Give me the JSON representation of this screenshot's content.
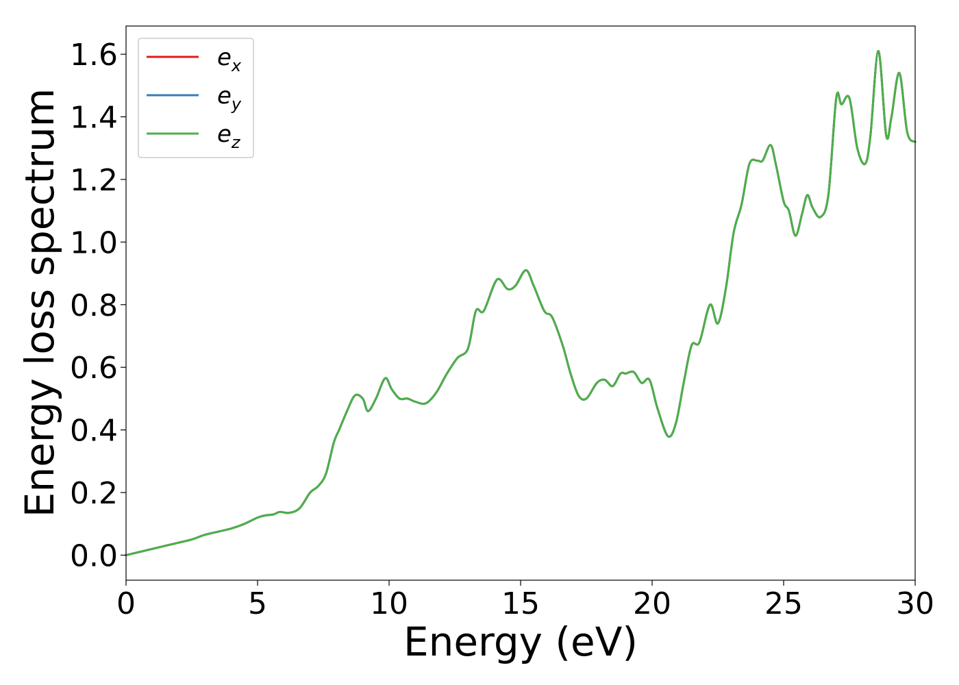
{
  "chart_data": {
    "type": "line",
    "xlabel": "Energy (eV)",
    "ylabel": "Energy loss spectrum",
    "xlim": [
      0,
      30
    ],
    "ylim": [
      -0.08,
      1.69
    ],
    "xticks": [
      0,
      5,
      10,
      15,
      20,
      25,
      30
    ],
    "xtick_labels": [
      "0",
      "5",
      "10",
      "15",
      "20",
      "25",
      "30"
    ],
    "yticks": [
      0.0,
      0.2,
      0.4,
      0.6,
      0.8,
      1.0,
      1.2,
      1.4,
      1.6
    ],
    "ytick_labels": [
      "0.0",
      "0.2",
      "0.4",
      "0.6",
      "0.8",
      "1.0",
      "1.2",
      "1.4",
      "1.6"
    ],
    "grid": false,
    "legend_position": "top-left",
    "x": [
      0,
      0.5,
      1.0,
      1.5,
      2.0,
      2.5,
      3.0,
      3.5,
      4.0,
      4.5,
      5.0,
      5.3,
      5.6,
      5.85,
      6.2,
      6.6,
      7.0,
      7.3,
      7.6,
      7.9,
      8.1,
      8.4,
      8.7,
      9.0,
      9.2,
      9.5,
      9.85,
      10.1,
      10.4,
      10.7,
      11.0,
      11.4,
      11.8,
      12.2,
      12.6,
      13.0,
      13.3,
      13.6,
      14.1,
      14.5,
      14.8,
      15.2,
      15.5,
      15.9,
      16.2,
      16.6,
      16.9,
      17.2,
      17.5,
      17.9,
      18.2,
      18.5,
      18.8,
      19.0,
      19.3,
      19.6,
      19.9,
      20.2,
      20.6,
      20.9,
      21.2,
      21.5,
      21.8,
      22.2,
      22.5,
      22.8,
      23.1,
      23.4,
      23.7,
      24.0,
      24.2,
      24.5,
      24.7,
      25.0,
      25.2,
      25.45,
      25.7,
      25.9,
      26.1,
      26.4,
      26.7,
      27.0,
      27.2,
      27.5,
      27.8,
      28.1,
      28.3,
      28.6,
      28.9,
      29.1,
      29.4,
      29.7,
      30.0
    ],
    "series": [
      {
        "name": "e_x",
        "color": "#e41a1c",
        "values": [
          0.0,
          0.01,
          0.02,
          0.03,
          0.04,
          0.05,
          0.065,
          0.075,
          0.085,
          0.1,
          0.12,
          0.127,
          0.13,
          0.138,
          0.135,
          0.15,
          0.2,
          0.22,
          0.26,
          0.36,
          0.4,
          0.46,
          0.51,
          0.5,
          0.46,
          0.5,
          0.565,
          0.53,
          0.5,
          0.5,
          0.49,
          0.485,
          0.52,
          0.58,
          0.63,
          0.66,
          0.78,
          0.78,
          0.88,
          0.85,
          0.86,
          0.91,
          0.86,
          0.78,
          0.76,
          0.67,
          0.58,
          0.51,
          0.5,
          0.55,
          0.56,
          0.54,
          0.58,
          0.58,
          0.585,
          0.55,
          0.56,
          0.47,
          0.38,
          0.42,
          0.55,
          0.67,
          0.68,
          0.8,
          0.74,
          0.85,
          1.03,
          1.12,
          1.25,
          1.26,
          1.26,
          1.31,
          1.25,
          1.13,
          1.1,
          1.02,
          1.09,
          1.15,
          1.11,
          1.08,
          1.15,
          1.46,
          1.44,
          1.46,
          1.3,
          1.25,
          1.34,
          1.61,
          1.34,
          1.4,
          1.54,
          1.35,
          1.32
        ]
      },
      {
        "name": "e_y",
        "color": "#377eb8",
        "values": [
          0.0,
          0.01,
          0.02,
          0.03,
          0.04,
          0.05,
          0.065,
          0.075,
          0.085,
          0.1,
          0.12,
          0.127,
          0.13,
          0.138,
          0.135,
          0.15,
          0.2,
          0.22,
          0.26,
          0.36,
          0.4,
          0.46,
          0.51,
          0.5,
          0.46,
          0.5,
          0.565,
          0.53,
          0.5,
          0.5,
          0.49,
          0.485,
          0.52,
          0.58,
          0.63,
          0.66,
          0.78,
          0.78,
          0.88,
          0.85,
          0.86,
          0.91,
          0.86,
          0.78,
          0.76,
          0.67,
          0.58,
          0.51,
          0.5,
          0.55,
          0.56,
          0.54,
          0.58,
          0.58,
          0.585,
          0.55,
          0.56,
          0.47,
          0.38,
          0.42,
          0.55,
          0.67,
          0.68,
          0.8,
          0.74,
          0.85,
          1.03,
          1.12,
          1.25,
          1.26,
          1.26,
          1.31,
          1.25,
          1.13,
          1.1,
          1.02,
          1.09,
          1.15,
          1.11,
          1.08,
          1.15,
          1.46,
          1.44,
          1.46,
          1.3,
          1.25,
          1.34,
          1.61,
          1.34,
          1.4,
          1.54,
          1.35,
          1.32
        ]
      },
      {
        "name": "e_z",
        "color": "#4daf4a",
        "values": [
          0.0,
          0.01,
          0.02,
          0.03,
          0.04,
          0.05,
          0.065,
          0.075,
          0.085,
          0.1,
          0.12,
          0.127,
          0.13,
          0.138,
          0.135,
          0.15,
          0.2,
          0.22,
          0.26,
          0.36,
          0.4,
          0.46,
          0.51,
          0.5,
          0.46,
          0.5,
          0.565,
          0.53,
          0.5,
          0.5,
          0.49,
          0.485,
          0.52,
          0.58,
          0.63,
          0.66,
          0.78,
          0.78,
          0.88,
          0.85,
          0.86,
          0.91,
          0.86,
          0.78,
          0.76,
          0.67,
          0.58,
          0.51,
          0.5,
          0.55,
          0.56,
          0.54,
          0.58,
          0.58,
          0.585,
          0.55,
          0.56,
          0.47,
          0.38,
          0.42,
          0.55,
          0.67,
          0.68,
          0.8,
          0.74,
          0.85,
          1.03,
          1.12,
          1.25,
          1.26,
          1.26,
          1.31,
          1.25,
          1.13,
          1.1,
          1.02,
          1.09,
          1.15,
          1.11,
          1.08,
          1.15,
          1.46,
          1.44,
          1.46,
          1.3,
          1.25,
          1.34,
          1.61,
          1.34,
          1.4,
          1.54,
          1.35,
          1.32
        ]
      }
    ],
    "legend": [
      {
        "base": "e",
        "sub": "x",
        "color": "#e41a1c"
      },
      {
        "base": "e",
        "sub": "y",
        "color": "#377eb8"
      },
      {
        "base": "e",
        "sub": "z",
        "color": "#4daf4a"
      }
    ]
  }
}
